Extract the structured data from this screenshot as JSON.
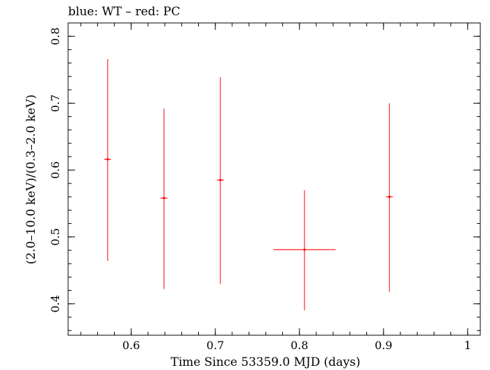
{
  "chart_data": {
    "type": "scatter",
    "title": "blue: WT – red: PC",
    "xlabel": "Time Since 53359.0 MJD (days)",
    "ylabel": "(2.0–10.0 keV)/(0.3–2.0 keV)",
    "xlim": [
      0.525,
      1.015
    ],
    "ylim": [
      0.353,
      0.82
    ],
    "x_ticks": [
      0.6,
      0.7,
      0.8,
      0.9,
      1
    ],
    "x_tick_labels": [
      "0.6",
      "0.7",
      "0.8",
      "0.9",
      "1"
    ],
    "y_ticks": [
      0.4,
      0.5,
      0.6,
      0.7,
      0.8
    ],
    "y_tick_labels": [
      "0.4",
      "0.5",
      "0.6",
      "0.7",
      "0.8"
    ],
    "grid": false,
    "series": [
      {
        "color": "#ff0000",
        "points": [
          {
            "x": 0.572,
            "y": 0.616,
            "xerr_low": 0.004,
            "xerr_high": 0.004,
            "yerr_low": 0.152,
            "yerr_high": 0.15
          },
          {
            "x": 0.639,
            "y": 0.558,
            "xerr_low": 0.004,
            "xerr_high": 0.004,
            "yerr_low": 0.136,
            "yerr_high": 0.134
          },
          {
            "x": 0.706,
            "y": 0.585,
            "xerr_low": 0.004,
            "xerr_high": 0.004,
            "yerr_low": 0.155,
            "yerr_high": 0.154
          },
          {
            "x": 0.806,
            "y": 0.481,
            "xerr_low": 0.037,
            "xerr_high": 0.037,
            "yerr_low": 0.091,
            "yerr_high": 0.089
          },
          {
            "x": 0.907,
            "y": 0.56,
            "xerr_low": 0.004,
            "xerr_high": 0.004,
            "yerr_low": 0.142,
            "yerr_high": 0.14
          }
        ]
      }
    ]
  }
}
